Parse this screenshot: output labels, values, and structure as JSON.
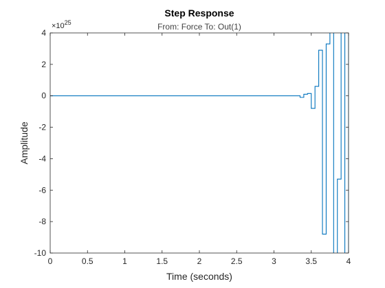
{
  "chart_data": {
    "type": "line",
    "title": "Step Response",
    "subtitle": "From: Force  To: Out(1)",
    "xlabel": "Time (seconds)",
    "ylabel": "Amplitude",
    "y_exponent_base": "×10",
    "y_exponent_power": "25",
    "xlim": [
      0,
      4
    ],
    "ylim": [
      -10,
      4
    ],
    "x_ticks": [
      0,
      0.5,
      1,
      1.5,
      2,
      2.5,
      3,
      3.5,
      4
    ],
    "x_tick_labels": [
      "0",
      "0.5",
      "1",
      "1.5",
      "2",
      "2.5",
      "3",
      "3.5",
      "4"
    ],
    "y_ticks": [
      -10,
      -8,
      -6,
      -4,
      -2,
      0,
      2,
      4
    ],
    "y_tick_labels": [
      "-10",
      "-8",
      "-6",
      "-4",
      "-2",
      "0",
      "2",
      "4"
    ],
    "grid": false,
    "line_color": "#0072BD",
    "step_series": {
      "x": [
        0,
        3.35,
        3.4,
        3.45,
        3.5,
        3.55,
        3.6,
        3.65,
        3.7,
        3.75,
        3.8,
        3.85,
        3.9,
        3.95,
        4.0
      ],
      "y": [
        0,
        -0.1,
        0.1,
        0.15,
        -0.8,
        0.6,
        2.9,
        -8.8,
        3.3,
        4.5,
        -10.5,
        -5.3,
        4.5,
        -10.5,
        4.5
      ]
    }
  }
}
